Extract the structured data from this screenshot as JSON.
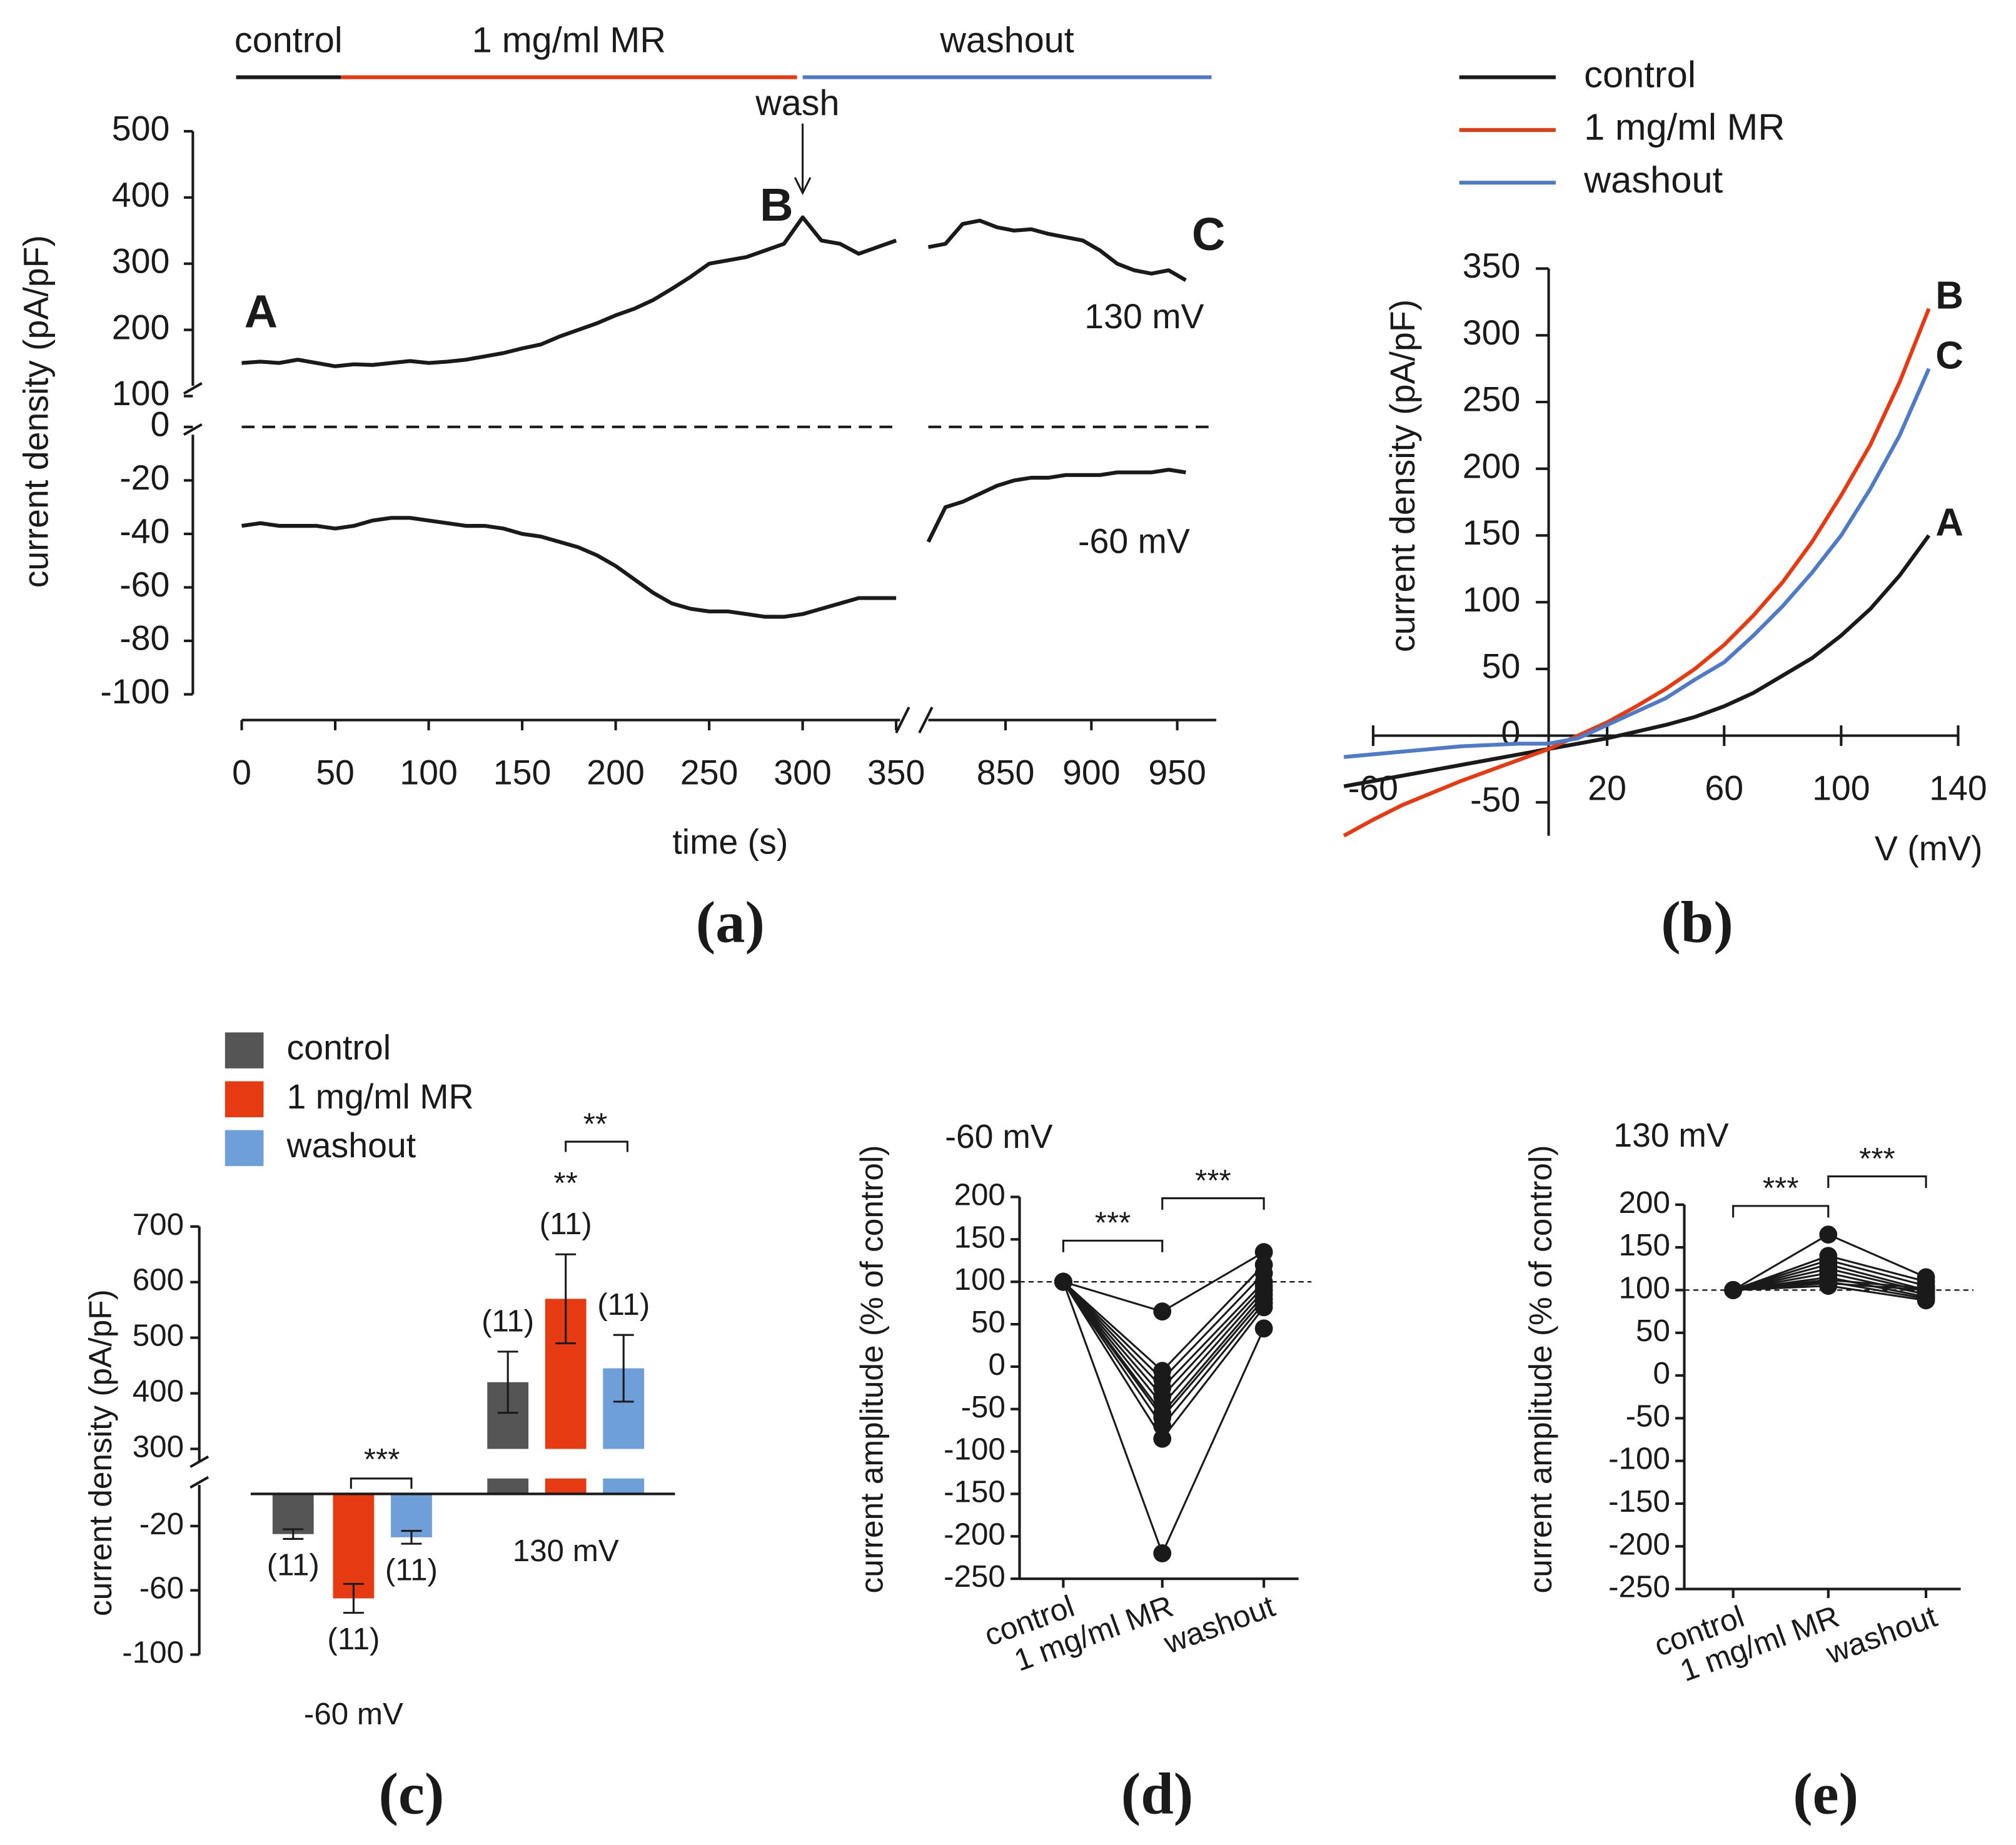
{
  "chart_data": [
    {
      "type": "line",
      "label": "(a)",
      "xlabel": "time (s)",
      "ylabel": "current density (pA/pF)",
      "x_segments": [
        {
          "xlim": [
            0,
            350
          ],
          "xticks": [
            0,
            50,
            100,
            150,
            200,
            250,
            300,
            350
          ]
        },
        {
          "xlim": [
            805,
            975
          ],
          "xticks": [
            850,
            900,
            950
          ]
        }
      ],
      "y_segments": [
        {
          "ylim": [
            100,
            500
          ],
          "yticks": [
            100,
            200,
            300,
            400,
            500
          ]
        },
        {
          "ylim": [
            -100,
            0
          ],
          "yticks": [
            -100,
            -80,
            -60,
            -40,
            -20,
            0
          ]
        }
      ],
      "x": [
        0,
        10,
        20,
        30,
        40,
        50,
        60,
        70,
        80,
        90,
        100,
        110,
        120,
        130,
        140,
        150,
        160,
        170,
        180,
        190,
        200,
        210,
        220,
        230,
        240,
        250,
        260,
        270,
        280,
        290,
        300,
        310,
        320,
        330,
        340,
        350,
        805,
        815,
        825,
        835,
        845,
        855,
        865,
        875,
        885,
        895,
        905,
        915,
        925,
        935,
        945,
        955
      ],
      "series": [
        {
          "name": "130 mV",
          "color": "#1a1a1a",
          "values": [
            150,
            152,
            150,
            155,
            150,
            145,
            148,
            147,
            150,
            153,
            150,
            152,
            155,
            160,
            165,
            172,
            178,
            190,
            200,
            210,
            222,
            232,
            245,
            262,
            280,
            300,
            305,
            310,
            320,
            330,
            370,
            335,
            330,
            315,
            325,
            335,
            325,
            330,
            360,
            365,
            355,
            350,
            352,
            345,
            340,
            335,
            320,
            300,
            290,
            285,
            290,
            275
          ]
        },
        {
          "name": "-60 mV",
          "color": "#1a1a1a",
          "values": [
            -37,
            -36,
            -37,
            -37,
            -37,
            -38,
            -37,
            -35,
            -34,
            -34,
            -35,
            -36,
            -37,
            -37,
            -38,
            -40,
            -41,
            -43,
            -45,
            -48,
            -52,
            -57,
            -62,
            -66,
            -68,
            -69,
            -69,
            -70,
            -71,
            -71,
            -70,
            -68,
            -66,
            -64,
            -64,
            -64,
            -43,
            -30,
            -28,
            -25,
            -22,
            -20,
            -19,
            -19,
            -18,
            -18,
            -18,
            -17,
            -17,
            -17,
            -16,
            -17
          ]
        }
      ],
      "phases": [
        {
          "label": "control",
          "color": "#1a1a1a",
          "start": -3,
          "end": 53
        },
        {
          "label": "1 mg/ml MR",
          "color": "#e63a12",
          "start": 53,
          "end": 297
        },
        {
          "label": "washout",
          "color": "#4f7ac7",
          "start": 300,
          "end": 970
        }
      ],
      "annotations": [
        {
          "text": "wash",
          "x": 300
        }
      ],
      "point_labels": [
        {
          "text": "A",
          "color": "#1a1a1a"
        },
        {
          "text": "B",
          "color": "#e63a12"
        },
        {
          "text": "C",
          "color": "#4f7ac7"
        }
      ]
    },
    {
      "type": "line",
      "label": "(b)",
      "xlabel": "V (mV)",
      "ylabel": "current density (pA/pF)",
      "xlim": [
        -60,
        140
      ],
      "xticks": [
        -60,
        20,
        60,
        100,
        140
      ],
      "ylim": [
        -75,
        350
      ],
      "yticks": [
        -50,
        0,
        50,
        100,
        150,
        200,
        250,
        300,
        350
      ],
      "x": [
        -70,
        -60,
        -50,
        -40,
        -30,
        -20,
        -10,
        0,
        10,
        20,
        30,
        40,
        50,
        60,
        70,
        80,
        90,
        100,
        110,
        120,
        130
      ],
      "series": [
        {
          "name": "control",
          "color": "#1a1a1a",
          "end_label": "A",
          "values": [
            -38,
            -34,
            -30,
            -26,
            -22,
            -18,
            -14,
            -10,
            -6,
            -2,
            3,
            8,
            14,
            22,
            32,
            45,
            58,
            75,
            95,
            120,
            150
          ]
        },
        {
          "name": "1 mg/ml MR",
          "color": "#e63a12",
          "end_label": "B",
          "values": [
            -75,
            -63,
            -52,
            -43,
            -34,
            -26,
            -18,
            -10,
            0,
            10,
            22,
            35,
            50,
            68,
            90,
            115,
            145,
            180,
            218,
            265,
            320
          ]
        },
        {
          "name": "washout",
          "color": "#4f7ac7",
          "end_label": "C",
          "values": [
            -16,
            -14,
            -12,
            -10,
            -8,
            -7,
            -6,
            -6,
            -2,
            8,
            18,
            28,
            42,
            55,
            75,
            97,
            122,
            150,
            185,
            225,
            275
          ]
        }
      ]
    },
    {
      "type": "bar",
      "label": "(c)",
      "ylabel": "current density (pA/pF)",
      "categories": [
        "-60 mV",
        "130 mV"
      ],
      "y_segments": [
        {
          "ylim": [
            300,
            700
          ],
          "yticks": [
            300,
            400,
            500,
            600,
            700
          ]
        },
        {
          "ylim": [
            -100,
            0
          ],
          "yticks": [
            -100,
            -60,
            -20
          ]
        }
      ],
      "series": [
        {
          "name": "control",
          "color": "#555555",
          "values": [
            -25,
            420
          ],
          "errors": [
            3,
            55
          ],
          "n_labels": [
            "(11)",
            "(11)"
          ]
        },
        {
          "name": "1 mg/ml MR",
          "color": "#e63a12",
          "values": [
            -65,
            570
          ],
          "errors": [
            9,
            80
          ],
          "n_labels": [
            "(11)",
            "(11)"
          ]
        },
        {
          "name": "washout",
          "color": "#6f9fd8",
          "values": [
            -27,
            445
          ],
          "errors": [
            4,
            60
          ],
          "n_labels": [
            "(11)",
            "(11)"
          ]
        }
      ],
      "annotations": [
        {
          "text": "***"
        },
        {
          "text": "**"
        },
        {
          "text": "**"
        }
      ]
    },
    {
      "type": "paired",
      "label": "(d)",
      "title": "-60 mV",
      "ylabel": "current amplitude (% of control)",
      "categories": [
        "control",
        "1 mg/ml MR",
        "washout"
      ],
      "ylim": [
        -250,
        200
      ],
      "yticks": [
        -250,
        -200,
        -150,
        -100,
        -50,
        0,
        50,
        100,
        150,
        200
      ],
      "reference": 100,
      "color": "#1a1a1a",
      "series": [
        {
          "values": [
            100,
            65,
            135
          ]
        },
        {
          "values": [
            100,
            -5,
            120
          ]
        },
        {
          "values": [
            100,
            -15,
            110
          ]
        },
        {
          "values": [
            100,
            -25,
            100
          ]
        },
        {
          "values": [
            100,
            -35,
            95
          ]
        },
        {
          "values": [
            100,
            -45,
            90
          ]
        },
        {
          "values": [
            100,
            -55,
            85
          ]
        },
        {
          "values": [
            100,
            -60,
            80
          ]
        },
        {
          "values": [
            100,
            -70,
            75
          ]
        },
        {
          "values": [
            100,
            -85,
            70
          ]
        },
        {
          "values": [
            100,
            -220,
            45
          ]
        }
      ],
      "annotations": [
        {
          "text": "***"
        },
        {
          "text": "***"
        }
      ]
    },
    {
      "type": "paired",
      "label": "(e)",
      "title": "130 mV",
      "ylabel": "current amplitude (% of control)",
      "categories": [
        "control",
        "1 mg/ml MR",
        "washout"
      ],
      "ylim": [
        -250,
        200
      ],
      "yticks": [
        -250,
        -200,
        -150,
        -100,
        -50,
        0,
        50,
        100,
        150,
        200
      ],
      "reference": 100,
      "color": "#1a1a1a",
      "series": [
        {
          "values": [
            100,
            165,
            115
          ]
        },
        {
          "values": [
            100,
            140,
            110
          ]
        },
        {
          "values": [
            100,
            135,
            105
          ]
        },
        {
          "values": [
            100,
            130,
            100
          ]
        },
        {
          "values": [
            100,
            125,
            98
          ]
        },
        {
          "values": [
            100,
            120,
            95
          ]
        },
        {
          "values": [
            100,
            115,
            92
          ]
        },
        {
          "values": [
            100,
            110,
            90
          ]
        },
        {
          "values": [
            100,
            105,
            88
          ]
        },
        {
          "values": [
            100,
            108,
            100
          ]
        },
        {
          "values": [
            100,
            112,
            102
          ]
        }
      ],
      "annotations": [
        {
          "text": "***"
        },
        {
          "text": "***"
        }
      ]
    }
  ]
}
